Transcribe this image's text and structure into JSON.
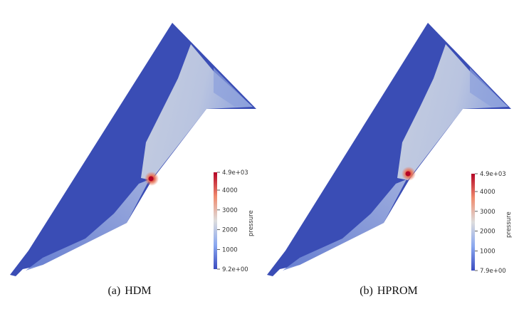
{
  "figure": {
    "panels": [
      {
        "id": "a",
        "caption_label": "(a)",
        "caption_text": "HDM",
        "colorbar": {
          "title": "pressure",
          "max_label": "4.9e+03",
          "min_label": "9.2e+00",
          "ticks": [
            "4000",
            "3000",
            "2000",
            "1000"
          ],
          "tick_values": [
            4000,
            3000,
            2000,
            1000
          ],
          "min_value": 9.2,
          "max_value": 4900
        }
      },
      {
        "id": "b",
        "caption_label": "(b)",
        "caption_text": "HPROM",
        "colorbar": {
          "title": "pressure",
          "max_label": "4.9e+03",
          "min_label": "7.9e+00",
          "ticks": [
            "4000",
            "3000",
            "2000",
            "1000"
          ],
          "tick_values": [
            4000,
            3000,
            2000,
            1000
          ],
          "min_value": 7.9,
          "max_value": 4900
        }
      }
    ],
    "colors": {
      "low": "#3b4cc0",
      "mid": "#dddddd",
      "high": "#b40426",
      "field_base": "#3a4db5"
    }
  }
}
